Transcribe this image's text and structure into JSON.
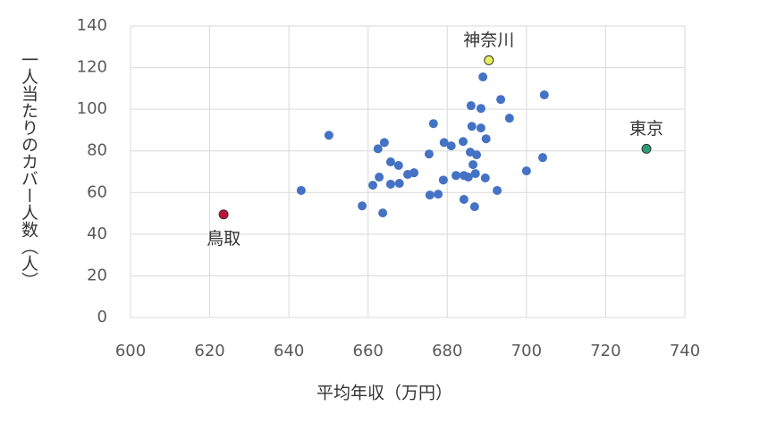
{
  "chart_data": {
    "type": "scatter",
    "xlabel": "平均年収（万円）",
    "ylabel": "一人当たりのカバー人数（人）",
    "xlim": [
      600,
      740
    ],
    "xticks": [
      600,
      620,
      640,
      660,
      680,
      700,
      720,
      740
    ],
    "ylim": [
      0,
      140
    ],
    "yticks": [
      0,
      20,
      40,
      60,
      80,
      100,
      120,
      140
    ],
    "grid": true,
    "series": [
      {
        "color": "#4472c4",
        "x": [
          643.1,
          650.1,
          658.5,
          661.2,
          662.5,
          662.8,
          664.1,
          663.7,
          665.7,
          665.7,
          667.7,
          667.9,
          670,
          671.6,
          675.4,
          675.6,
          676.5,
          677.7,
          679,
          679.2,
          681,
          682.2,
          684,
          684.2,
          684.2,
          685.3,
          685.8,
          686,
          686.2,
          686.5,
          686.9,
          687.1,
          687.4,
          688.5,
          688.5,
          689,
          689.8,
          689.6,
          692.6,
          693.5,
          695.7,
          700,
          704.1,
          704.5
        ],
        "y": [
          61,
          87.5,
          53.6,
          63.5,
          81,
          67.4,
          84,
          50.2,
          64,
          74.7,
          73,
          64.4,
          68.7,
          69.5,
          78.5,
          58.8,
          93.1,
          59.2,
          66,
          84,
          82.4,
          68.2,
          84.5,
          68.2,
          56.7,
          67.4,
          79.4,
          101.7,
          91.8,
          73.4,
          53.2,
          69.1,
          78.1,
          100.4,
          91,
          115.5,
          85.8,
          67,
          61,
          104.7,
          95.7,
          70.4,
          76.8,
          106.9
        ]
      },
      {
        "name": "鳥取",
        "color": "#c0143c",
        "x": [
          623.5
        ],
        "y": [
          49.5
        ]
      },
      {
        "name": "神奈川",
        "color": "#e6f05a",
        "x": [
          690.5
        ],
        "y": [
          123.5
        ]
      },
      {
        "name": "東京",
        "color": "#2a9d78",
        "x": [
          730.3
        ],
        "y": [
          81
        ]
      }
    ]
  }
}
